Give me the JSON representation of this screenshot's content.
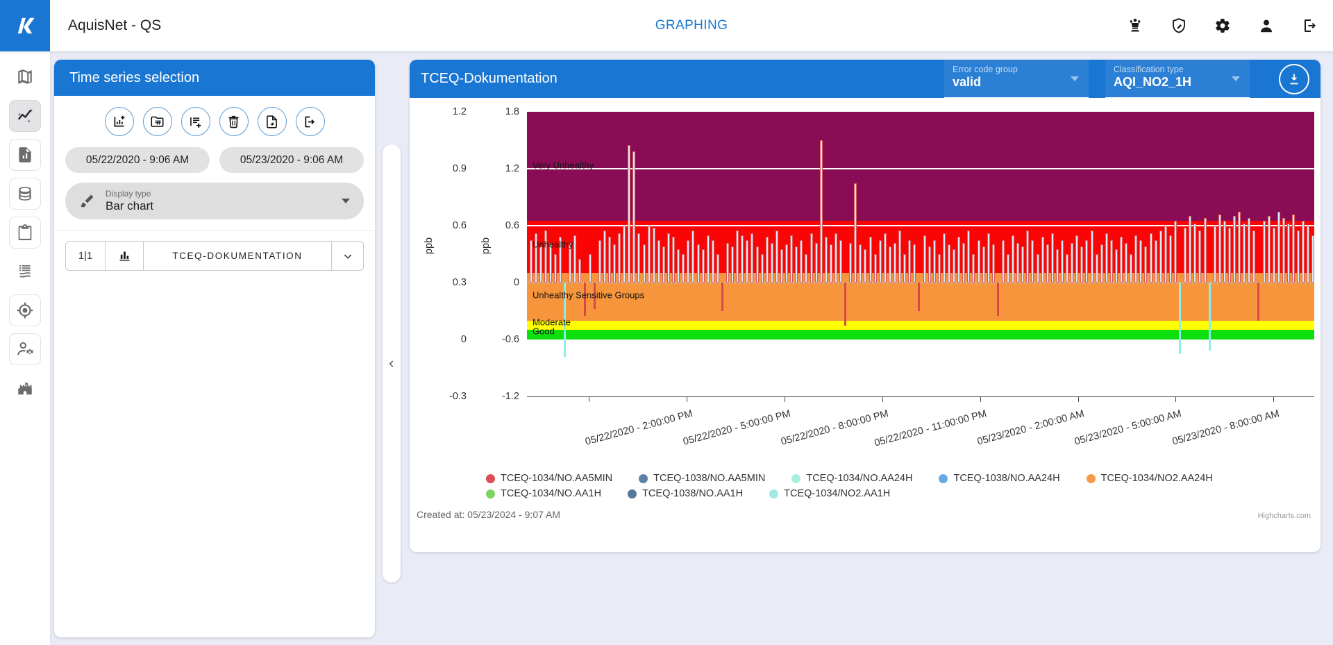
{
  "app": {
    "window_title": "AquisNet - QS",
    "nav_title": "GRAPHING"
  },
  "topbar": {
    "actions": [
      {
        "icon": "chess-queen-icon"
      },
      {
        "icon": "shield-edit-icon"
      },
      {
        "icon": "settings-icon"
      },
      {
        "icon": "account-icon"
      },
      {
        "icon": "logout-icon"
      }
    ]
  },
  "sidebar": {
    "items": [
      {
        "icon": "map-icon",
        "active": false,
        "boxed": false
      },
      {
        "icon": "insights-icon",
        "active": true,
        "boxed": true
      },
      {
        "icon": "report-icon",
        "active": false,
        "boxed": true
      },
      {
        "icon": "database-icon",
        "active": false,
        "boxed": true
      },
      {
        "icon": "clipboard-icon",
        "active": false,
        "boxed": true
      },
      {
        "icon": "feed-icon",
        "active": false,
        "boxed": false
      },
      {
        "icon": "gps-icon",
        "active": false,
        "boxed": true
      },
      {
        "icon": "user-settings-icon",
        "active": false,
        "boxed": true
      },
      {
        "icon": "fort-icon",
        "active": false,
        "boxed": false
      }
    ]
  },
  "timeseries_panel": {
    "title": "Time series selection",
    "toolbar": [
      {
        "icon": "add-chart-icon"
      },
      {
        "icon": "folder-data-icon"
      },
      {
        "icon": "playlist-add-icon"
      },
      {
        "icon": "delete-icon"
      },
      {
        "icon": "file-export-icon"
      },
      {
        "icon": "export-icon"
      }
    ],
    "date_start": "05/22/2020 - 9:06 AM",
    "date_end": "05/23/2020 - 9:06 AM",
    "display_type": {
      "label": "Display type",
      "value": "Bar chart"
    },
    "series_list": [
      {
        "position": "1|1",
        "icon": "bar-chart-icon",
        "name": "TCEQ-DOKUMENTATION"
      }
    ]
  },
  "chart_panel": {
    "title": "TCEQ-Dokumentation",
    "error_code_group": {
      "label": "Error code group",
      "value": "valid"
    },
    "classification_type": {
      "label": "Classification type",
      "value": "AQI_NO2_1H"
    },
    "created_at": "Created at: 05/23/2024 - 9:07 AM",
    "credit": "Highcharts.com"
  },
  "chart_data": {
    "type": "bar",
    "title": "TCEQ-Dokumentation",
    "value_range": [
      -1.2,
      1.8
    ],
    "y_axes": [
      {
        "label": "ppb",
        "ticks": [
          "1.2",
          "0.9",
          "0.6",
          "0.3",
          "0",
          "-0.3"
        ]
      },
      {
        "label": "ppb",
        "ticks": [
          "1.8",
          "1.2",
          "0.6",
          "0",
          "-0.6",
          "-1.2"
        ]
      }
    ],
    "x_ticks": [
      "05/22/2020 - 2:00:00 PM",
      "05/22/2020 - 5:00:00 PM",
      "05/22/2020 - 8:00:00 PM",
      "05/22/2020 - 11:00:00 PM",
      "05/23/2020 - 2:00:00 AM",
      "05/23/2020 - 5:00:00 AM",
      "05/23/2020 - 8:00:00 AM"
    ],
    "plot_bands": [
      {
        "label": "",
        "label_at": 1.5,
        "from": 1.2,
        "to": 1.8,
        "color": "#8a0c55"
      },
      {
        "label": "Very Unhealthy",
        "label_at": 1.24,
        "from": 0.65,
        "to": 1.2,
        "color": "#8a0c55"
      },
      {
        "label": "Unhealthy",
        "label_at": 0.4,
        "from": 0.1,
        "to": 0.65,
        "color": "#fa0505"
      },
      {
        "label": "Unhealthy Sensitive Groups",
        "label_at": -0.13,
        "from": -0.4,
        "to": 0.1,
        "color": "#f6953c"
      },
      {
        "label": "Moderate",
        "label_at": -0.42,
        "from": -0.5,
        "to": -0.4,
        "color": "#ffff00"
      },
      {
        "label": "Good",
        "label_at": -0.51,
        "from": -0.6,
        "to": -0.5,
        "color": "#0ddf0d"
      }
    ],
    "threshold_lines": [
      {
        "value": 1.2
      },
      {
        "value": 0.6
      }
    ],
    "zero_line": 0,
    "legend": [
      [
        {
          "name": "TCEQ-1034/NO.AA5MIN",
          "color": "#db4d52"
        },
        {
          "name": "TCEQ-1038/NO.AA5MIN",
          "color": "#5e81a5"
        },
        {
          "name": "TCEQ-1034/NO.AA24H",
          "color": "#a9edde"
        },
        {
          "name": "TCEQ-1038/NO.AA24H",
          "color": "#66a9e9"
        },
        {
          "name": "TCEQ-1034/NO2.AA24H",
          "color": "#f49a49"
        }
      ],
      [
        {
          "name": "TCEQ-1034/NO.AA1H",
          "color": "#7ed266"
        },
        {
          "name": "TCEQ-1038/NO.AA1H",
          "color": "#54789b"
        },
        {
          "name": "TCEQ-1034/NO2.AA1H",
          "color": "#9fe9e3"
        }
      ]
    ],
    "bars": {
      "baseline": 0,
      "fill": "#d9eaf7",
      "stroke": "#d95c5c",
      "negative_fill": "#d94848",
      "values": [
        0.45,
        0.52,
        0.38,
        0.55,
        0.42,
        0.3,
        0.48,
        -0.78,
        0.42,
        0.5,
        0.25,
        -0.35,
        0.3,
        -0.28,
        0.45,
        0.55,
        0.48,
        0.4,
        0.52,
        0.6,
        1.45,
        1.38,
        0.52,
        0.4,
        0.6,
        0.58,
        0.45,
        0.38,
        0.52,
        0.48,
        0.35,
        0.3,
        0.45,
        0.55,
        0.4,
        0.35,
        0.5,
        0.45,
        0.3,
        -0.3,
        0.42,
        0.38,
        0.55,
        0.5,
        0.45,
        0.52,
        0.38,
        0.3,
        0.48,
        0.42,
        0.55,
        0.35,
        0.4,
        0.5,
        0.38,
        0.45,
        0.3,
        0.52,
        0.42,
        1.5,
        0.48,
        0.4,
        0.52,
        0.45,
        -0.45,
        0.42,
        1.05,
        0.4,
        0.35,
        0.48,
        0.3,
        0.45,
        0.52,
        0.38,
        0.42,
        0.55,
        0.3,
        0.45,
        0.4,
        -0.3,
        0.5,
        0.38,
        0.45,
        0.3,
        0.52,
        0.4,
        0.35,
        0.48,
        0.42,
        0.55,
        0.3,
        0.45,
        0.38,
        0.52,
        0.4,
        -0.35,
        0.45,
        0.3,
        0.5,
        0.42,
        0.38,
        0.55,
        0.45,
        0.3,
        0.48,
        0.4,
        0.52,
        0.35,
        0.45,
        0.3,
        0.42,
        0.5,
        0.38,
        0.45,
        0.55,
        0.3,
        0.4,
        0.52,
        0.45,
        0.35,
        0.48,
        0.42,
        0.3,
        0.5,
        0.45,
        0.38,
        0.52,
        0.45,
        0.55,
        0.6,
        0.5,
        0.65,
        -0.75,
        0.58,
        0.7,
        0.62,
        0.55,
        0.68,
        -0.72,
        0.6,
        0.72,
        0.65,
        0.58,
        0.7,
        0.75,
        0.62,
        0.68,
        0.55,
        -0.4,
        0.65,
        0.7,
        0.58,
        0.75,
        0.68,
        0.62,
        0.72,
        0.55,
        0.65,
        0.6,
        0.5
      ],
      "overrides": [
        {
          "i": 7,
          "color": "#8ceee8"
        },
        {
          "i": 132,
          "color": "#8ceee8"
        },
        {
          "i": 138,
          "color": "#8ceee8"
        }
      ]
    }
  }
}
